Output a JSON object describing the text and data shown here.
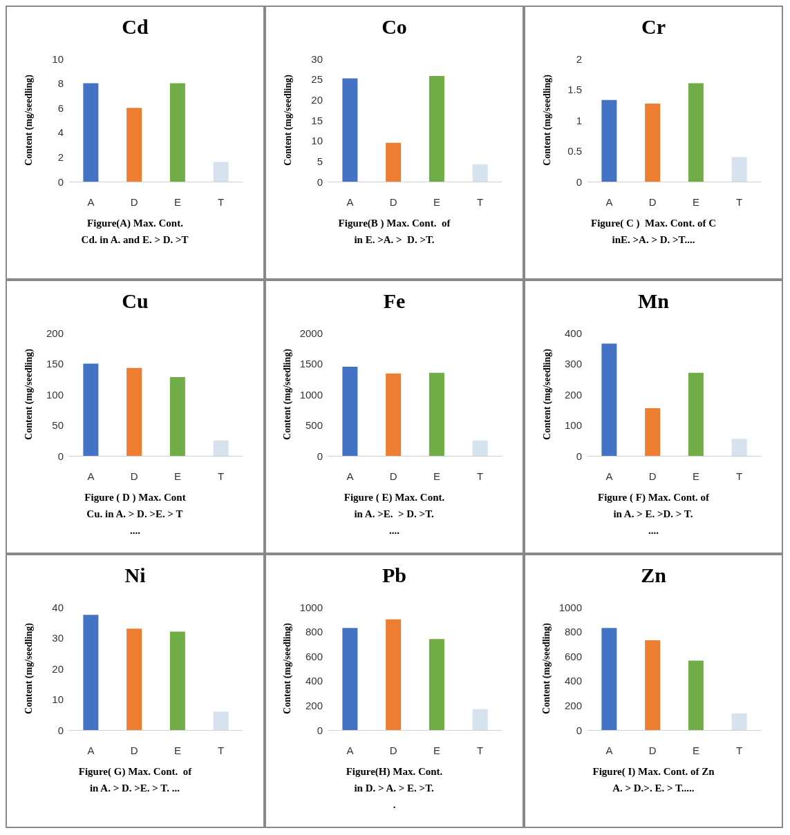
{
  "chart_data": [
    {
      "type": "bar",
      "title": "Cd",
      "ylabel": "Content (mg/seedling)",
      "categories": [
        "A",
        "D",
        "E",
        "T"
      ],
      "values": [
        8,
        6,
        8,
        1.6
      ],
      "colors": [
        "#4472c4",
        "#ed7d31",
        "#70ad47",
        "#d6e2ee"
      ],
      "ylim": [
        0,
        10
      ],
      "yticks": [
        0,
        2,
        4,
        6,
        8,
        10
      ],
      "grid": false,
      "annotations": [
        "Figure(A) Max. Cont.",
        "Cd. in A. and E. > D. >T"
      ]
    },
    {
      "type": "bar",
      "title": "Co",
      "ylabel": "Content (mg/seedling)",
      "categories": [
        "A",
        "D",
        "E",
        "T"
      ],
      "values": [
        25.2,
        9.5,
        25.8,
        4.2
      ],
      "colors": [
        "#4472c4",
        "#ed7d31",
        "#70ad47",
        "#d6e2ee"
      ],
      "ylim": [
        0,
        30
      ],
      "yticks": [
        0,
        5,
        10,
        15,
        20,
        25,
        30
      ],
      "grid": false,
      "annotations": [
        "Figure(B ) Max. Cont.  of",
        "in E. >A. >  D. >T."
      ]
    },
    {
      "type": "bar",
      "title": "Cr",
      "ylabel": "Content (mg/seedling)",
      "categories": [
        "A",
        "D",
        "E",
        "T"
      ],
      "values": [
        1.33,
        1.27,
        1.6,
        0.4
      ],
      "colors": [
        "#4472c4",
        "#ed7d31",
        "#70ad47",
        "#d6e2ee"
      ],
      "ylim": [
        0,
        2
      ],
      "yticks": [
        0,
        0.5,
        1,
        1.5,
        2
      ],
      "grid": false,
      "annotations": [
        "Figure( C )  Max. Cont. of C",
        "inE. >A. > D. >T...."
      ]
    },
    {
      "type": "bar",
      "title": "Cu",
      "ylabel": "Content (mg/seedling)",
      "categories": [
        "A",
        "D",
        "E",
        "T"
      ],
      "values": [
        150,
        143,
        128,
        25
      ],
      "colors": [
        "#4472c4",
        "#ed7d31",
        "#70ad47",
        "#d6e2ee"
      ],
      "ylim": [
        0,
        200
      ],
      "yticks": [
        0,
        50,
        100,
        150,
        200
      ],
      "grid": false,
      "annotations": [
        "Figure ( D ) Max. Cont",
        "Cu. in A. > D. >E. > T",
        "...."
      ]
    },
    {
      "type": "bar",
      "title": "Fe",
      "ylabel": "Content (mg/seedling)",
      "categories": [
        "A",
        "D",
        "E",
        "T"
      ],
      "values": [
        1450,
        1340,
        1350,
        250
      ],
      "colors": [
        "#4472c4",
        "#ed7d31",
        "#70ad47",
        "#d6e2ee"
      ],
      "ylim": [
        0,
        2000
      ],
      "yticks": [
        0,
        500,
        1000,
        1500,
        2000
      ],
      "grid": false,
      "annotations": [
        "Figure ( E) Max. Cont.",
        "in A. >E.  > D. >T.",
        "...."
      ]
    },
    {
      "type": "bar",
      "title": "Mn",
      "ylabel": "Content (mg/seedling)",
      "categories": [
        "A",
        "D",
        "E",
        "T"
      ],
      "values": [
        365,
        155,
        270,
        55
      ],
      "colors": [
        "#4472c4",
        "#ed7d31",
        "#70ad47",
        "#d6e2ee"
      ],
      "ylim": [
        0,
        400
      ],
      "yticks": [
        0,
        100,
        200,
        300,
        400
      ],
      "grid": false,
      "annotations": [
        "Figure ( F) Max. Cont. of",
        "in A. > E. >D. > T.",
        "...."
      ]
    },
    {
      "type": "bar",
      "title": "Ni",
      "ylabel": "Content (mg/seedling)",
      "categories": [
        "A",
        "D",
        "E",
        "T"
      ],
      "values": [
        37.5,
        33,
        32,
        6
      ],
      "colors": [
        "#4472c4",
        "#ed7d31",
        "#70ad47",
        "#d6e2ee"
      ],
      "ylim": [
        0,
        40
      ],
      "yticks": [
        0,
        10,
        20,
        30,
        40
      ],
      "grid": false,
      "annotations": [
        "Figure( G) Max. Cont.  of",
        "in A. > D. >E. > T. ..."
      ]
    },
    {
      "type": "bar",
      "title": "Pb",
      "ylabel": "Content (mg/seedling)",
      "categories": [
        "A",
        "D",
        "E",
        "T"
      ],
      "values": [
        830,
        900,
        740,
        170
      ],
      "colors": [
        "#4472c4",
        "#ed7d31",
        "#70ad47",
        "#d6e2ee"
      ],
      "ylim": [
        0,
        1000
      ],
      "yticks": [
        0,
        200,
        400,
        600,
        800,
        1000
      ],
      "grid": false,
      "annotations": [
        "Figure(H) Max. Cont.",
        "in D. > A. > E. >T.",
        "."
      ]
    },
    {
      "type": "bar",
      "title": "Zn",
      "ylabel": "Content (mg/seedling)",
      "categories": [
        "A",
        "D",
        "E",
        "T"
      ],
      "values": [
        830,
        730,
        565,
        135
      ],
      "colors": [
        "#4472c4",
        "#ed7d31",
        "#70ad47",
        "#d6e2ee"
      ],
      "ylim": [
        0,
        1000
      ],
      "yticks": [
        0,
        200,
        400,
        600,
        800,
        1000
      ],
      "grid": false,
      "annotations": [
        "Figure( I) Max. Cont. of Zn",
        "A. > D.>. E. > T....."
      ]
    }
  ]
}
